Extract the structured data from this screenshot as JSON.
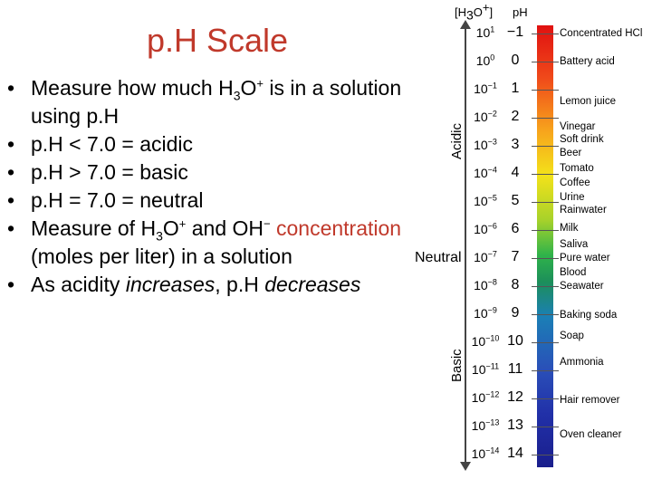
{
  "slide": {
    "title": "p.H Scale",
    "bullets": [
      {
        "pre": "Measure how much H",
        "sub": "3",
        "mid": "O",
        "sup": "+",
        "post": " is in a solution using p.H"
      },
      {
        "text": "p.H < 7.0 = acidic"
      },
      {
        "text": "p.H > 7.0 = basic"
      },
      {
        "text": "p.H = 7.0 = neutral"
      },
      {
        "a": "Measure of H",
        "sub": "3",
        "b": "O",
        "sup": "+",
        "c": " and OH",
        "sup2": "−",
        "d": " ",
        "red": "concentration",
        "e": " (moles per liter) in a solution"
      },
      {
        "a": "As acidity ",
        "i1": "increases",
        "b": ", p.H ",
        "i2": "decreases"
      }
    ]
  },
  "scale": {
    "header_conc_pre": "[H",
    "header_conc_sub": "3",
    "header_conc_mid": "O",
    "header_conc_sup": "+",
    "header_conc_post": "]",
    "header_ph": "pH",
    "acidic_label": "Acidic",
    "basic_label": "Basic",
    "neutral_label": "Neutral",
    "rows": [
      {
        "exp": "1",
        "ph": "−1"
      },
      {
        "exp": "0",
        "ph": "0"
      },
      {
        "exp": "−1",
        "ph": "1"
      },
      {
        "exp": "−2",
        "ph": "2"
      },
      {
        "exp": "−3",
        "ph": "3"
      },
      {
        "exp": "−4",
        "ph": "4"
      },
      {
        "exp": "−5",
        "ph": "5"
      },
      {
        "exp": "−6",
        "ph": "6"
      },
      {
        "exp": "−7",
        "ph": "7"
      },
      {
        "exp": "−8",
        "ph": "8"
      },
      {
        "exp": "−9",
        "ph": "9"
      },
      {
        "exp": "−10",
        "ph": "10"
      },
      {
        "exp": "−11",
        "ph": "11"
      },
      {
        "exp": "−12",
        "ph": "12"
      },
      {
        "exp": "−13",
        "ph": "13"
      },
      {
        "exp": "−14",
        "ph": "14"
      }
    ],
    "substances": [
      "Concentrated HCl",
      "Battery acid",
      "Lemon juice",
      "Vinegar",
      "Soft drink",
      "Beer",
      "Tomato",
      "Coffee",
      "Urine",
      "Rainwater",
      "Milk",
      "Saliva",
      "Pure water",
      "Blood",
      "Seawater",
      "Baking soda",
      "Soap",
      "Ammonia",
      "Hair remover",
      "Oven cleaner"
    ]
  }
}
